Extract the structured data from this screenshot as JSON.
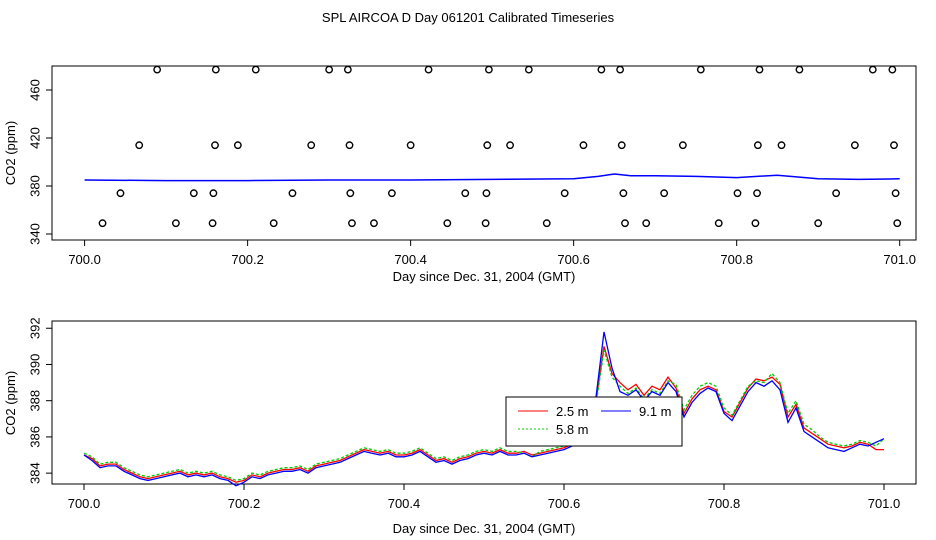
{
  "title": "SPL AIRCOA D  Day 061201  Calibrated Timeseries",
  "chart_data": [
    {
      "type": "scatter",
      "panel": "top",
      "xlabel": "Day since Dec. 31, 2004 (GMT)",
      "ylabel": "CO2 (ppm)",
      "xlim": [
        699.96,
        701.02
      ],
      "ylim": [
        335,
        480
      ],
      "xticks": [
        "700.0",
        "700.2",
        "700.4",
        "700.6",
        "700.8",
        "701.0"
      ],
      "yticks": [
        "340",
        "380",
        "420",
        "460"
      ],
      "ytick_values": [
        340,
        380,
        420,
        460
      ],
      "xtick_values": [
        700.0,
        700.2,
        700.4,
        700.6,
        700.8,
        701.0
      ],
      "marker_color": "#000000",
      "line_color": "#0000ff",
      "points": [
        [
          700.022,
          349
        ],
        [
          700.044,
          374
        ],
        [
          700.067,
          414
        ],
        [
          700.089,
          477
        ],
        [
          700.112,
          349
        ],
        [
          700.134,
          374
        ],
        [
          700.157,
          349
        ],
        [
          700.158,
          374
        ],
        [
          700.16,
          414
        ],
        [
          700.161,
          477
        ],
        [
          700.188,
          414
        ],
        [
          700.21,
          477
        ],
        [
          700.232,
          349
        ],
        [
          700.255,
          374
        ],
        [
          700.278,
          414
        ],
        [
          700.3,
          477
        ],
        [
          700.323,
          477
        ],
        [
          700.325,
          414
        ],
        [
          700.326,
          374
        ],
        [
          700.328,
          349
        ],
        [
          700.355,
          349
        ],
        [
          700.377,
          374
        ],
        [
          700.4,
          414
        ],
        [
          700.422,
          477
        ],
        [
          700.445,
          349
        ],
        [
          700.467,
          374
        ],
        [
          700.492,
          349
        ],
        [
          700.493,
          374
        ],
        [
          700.494,
          414
        ],
        [
          700.496,
          477
        ],
        [
          700.522,
          414
        ],
        [
          700.545,
          477
        ],
        [
          700.567,
          349
        ],
        [
          700.589,
          374
        ],
        [
          700.612,
          414
        ],
        [
          700.634,
          477
        ],
        [
          700.657,
          477
        ],
        [
          700.659,
          414
        ],
        [
          700.661,
          374
        ],
        [
          700.663,
          349
        ],
        [
          700.689,
          349
        ],
        [
          700.711,
          374
        ],
        [
          700.734,
          414
        ],
        [
          700.756,
          477
        ],
        [
          700.778,
          349
        ],
        [
          700.801,
          374
        ],
        [
          700.823,
          349
        ],
        [
          700.825,
          374
        ],
        [
          700.826,
          414
        ],
        [
          700.828,
          477
        ],
        [
          700.855,
          414
        ],
        [
          700.877,
          477
        ],
        [
          700.9,
          349
        ],
        [
          700.922,
          374
        ],
        [
          700.945,
          414
        ],
        [
          700.967,
          477
        ],
        [
          700.991,
          477
        ],
        [
          700.993,
          414
        ],
        [
          700.995,
          374
        ],
        [
          700.997,
          349
        ]
      ],
      "series": [
        {
          "x": [
            700.0,
            700.1,
            700.2,
            700.3,
            700.4,
            700.5,
            700.6,
            700.63,
            700.65,
            700.67,
            700.7,
            700.75,
            700.8,
            700.85,
            700.9,
            700.95,
            701.0
          ],
          "values": [
            385,
            384.5,
            384.5,
            385,
            385,
            385.5,
            386,
            388,
            390,
            388.5,
            388.5,
            388,
            387,
            389,
            386,
            385.5,
            386
          ]
        }
      ]
    },
    {
      "type": "line",
      "panel": "bottom",
      "xlabel": "Day since Dec. 31, 2004 (GMT)",
      "ylabel": "CO2 (ppm)",
      "xlim": [
        699.96,
        701.04
      ],
      "ylim": [
        383.4,
        392.4
      ],
      "xticks": [
        "700.0",
        "700.2",
        "700.4",
        "700.6",
        "700.8",
        "701.0"
      ],
      "yticks": [
        "384",
        "386",
        "388",
        "390",
        "392"
      ],
      "ytick_values": [
        384,
        386,
        388,
        390,
        392
      ],
      "xtick_values": [
        700.0,
        700.2,
        700.4,
        700.6,
        700.8,
        701.0
      ],
      "legend": {
        "placement": "center-right",
        "entries": [
          {
            "label": "2.5 m",
            "color": "#ff0000"
          },
          {
            "label": "5.8 m",
            "color": "#00cc00"
          },
          {
            "label": "9.1 m",
            "color": "#0000ff"
          }
        ]
      },
      "x": [
        700.0,
        700.01,
        700.02,
        700.03,
        700.04,
        700.05,
        700.06,
        700.07,
        700.08,
        700.09,
        700.1,
        700.11,
        700.12,
        700.13,
        700.14,
        700.15,
        700.16,
        700.17,
        700.18,
        700.19,
        700.2,
        700.21,
        700.22,
        700.23,
        700.24,
        700.25,
        700.26,
        700.27,
        700.28,
        700.29,
        700.3,
        700.31,
        700.32,
        700.33,
        700.34,
        700.35,
        700.36,
        700.37,
        700.38,
        700.39,
        700.4,
        700.41,
        700.42,
        700.43,
        700.44,
        700.45,
        700.46,
        700.47,
        700.48,
        700.49,
        700.5,
        700.51,
        700.52,
        700.53,
        700.54,
        700.55,
        700.56,
        700.57,
        700.58,
        700.59,
        700.6,
        700.61,
        700.62,
        700.63,
        700.64,
        700.65,
        700.66,
        700.67,
        700.68,
        700.69,
        700.7,
        700.71,
        700.72,
        700.73,
        700.74,
        700.75,
        700.76,
        700.77,
        700.78,
        700.79,
        700.8,
        700.81,
        700.82,
        700.83,
        700.84,
        700.85,
        700.86,
        700.87,
        700.88,
        700.89,
        700.9,
        700.91,
        700.92,
        700.93,
        700.94,
        700.95,
        700.96,
        700.97,
        700.98,
        700.99,
        701.0
      ],
      "series": [
        {
          "name": "2.5 m",
          "values": [
            385.0,
            384.8,
            384.4,
            384.5,
            384.5,
            384.2,
            384.0,
            383.8,
            383.7,
            383.8,
            383.9,
            384.0,
            384.1,
            383.9,
            384.0,
            383.9,
            384.0,
            383.8,
            383.7,
            383.5,
            383.6,
            383.9,
            383.8,
            384.0,
            384.1,
            384.2,
            384.2,
            384.3,
            384.1,
            384.4,
            384.5,
            384.6,
            384.7,
            384.9,
            385.1,
            385.3,
            385.2,
            385.1,
            385.2,
            385.0,
            385.0,
            385.1,
            385.3,
            385.0,
            384.7,
            384.8,
            384.6,
            384.8,
            384.9,
            385.1,
            385.2,
            385.1,
            385.3,
            385.1,
            385.1,
            385.2,
            385.0,
            385.1,
            385.2,
            385.3,
            385.4,
            385.6,
            385.9,
            386.1,
            388.0,
            391.0,
            389.5,
            389.0,
            388.6,
            388.9,
            388.3,
            388.8,
            388.6,
            389.3,
            388.7,
            387.3,
            388.1,
            388.6,
            388.8,
            388.6,
            387.4,
            387.1,
            387.9,
            388.7,
            389.2,
            389.1,
            389.3,
            388.9,
            387.1,
            387.8,
            386.5,
            386.2,
            385.9,
            385.6,
            385.5,
            385.4,
            385.5,
            385.7,
            385.6,
            385.3,
            385.3
          ]
        },
        {
          "name": "5.8 m",
          "values": [
            385.1,
            384.9,
            384.5,
            384.6,
            384.6,
            384.3,
            384.1,
            383.9,
            383.8,
            383.9,
            384.0,
            384.1,
            384.2,
            384.0,
            384.1,
            384.0,
            384.1,
            383.9,
            383.8,
            383.6,
            383.7,
            384.0,
            383.9,
            384.1,
            384.2,
            384.3,
            384.3,
            384.4,
            384.2,
            384.5,
            384.6,
            384.7,
            384.8,
            385.0,
            385.2,
            385.4,
            385.3,
            385.2,
            385.3,
            385.1,
            385.1,
            385.2,
            385.4,
            385.1,
            384.8,
            384.9,
            384.7,
            384.9,
            385.0,
            385.2,
            385.3,
            385.2,
            385.4,
            385.2,
            385.2,
            385.1,
            384.9,
            385.2,
            385.3,
            385.4,
            385.5,
            385.7,
            386.0,
            386.2,
            387.8,
            390.8,
            389.3,
            388.8,
            388.4,
            388.7,
            388.1,
            388.6,
            388.4,
            389.1,
            388.9,
            387.5,
            388.3,
            388.8,
            389.0,
            388.8,
            387.6,
            387.2,
            388.0,
            388.8,
            389.1,
            389.0,
            389.5,
            389.0,
            387.3,
            388.0,
            386.7,
            386.4,
            386.0,
            385.7,
            385.6,
            385.5,
            385.6,
            385.8,
            385.7,
            385.5,
            385.9
          ]
        },
        {
          "name": "9.1 m",
          "values": [
            385.0,
            384.7,
            384.3,
            384.4,
            384.4,
            384.1,
            383.9,
            383.7,
            383.6,
            383.7,
            383.8,
            383.9,
            384.0,
            383.8,
            383.9,
            383.8,
            383.9,
            383.7,
            383.6,
            383.3,
            383.5,
            383.8,
            383.7,
            383.9,
            384.0,
            384.1,
            384.1,
            384.2,
            384.0,
            384.3,
            384.4,
            384.5,
            384.6,
            384.8,
            385.0,
            385.2,
            385.1,
            385.0,
            385.1,
            384.9,
            384.9,
            385.0,
            385.2,
            384.9,
            384.6,
            384.7,
            384.5,
            384.7,
            384.8,
            385.0,
            385.1,
            385.0,
            385.2,
            385.0,
            385.0,
            385.1,
            384.9,
            385.0,
            385.1,
            385.2,
            385.3,
            385.5,
            385.8,
            386.0,
            388.2,
            391.8,
            389.8,
            388.5,
            388.3,
            388.6,
            388.0,
            388.5,
            388.3,
            389.0,
            388.5,
            387.1,
            387.9,
            388.4,
            388.7,
            388.5,
            387.3,
            386.9,
            387.7,
            388.5,
            389.0,
            388.8,
            389.1,
            388.6,
            386.8,
            387.6,
            386.3,
            386.0,
            385.7,
            385.4,
            385.3,
            385.2,
            385.4,
            385.6,
            385.5,
            385.7,
            385.9
          ]
        }
      ]
    }
  ]
}
